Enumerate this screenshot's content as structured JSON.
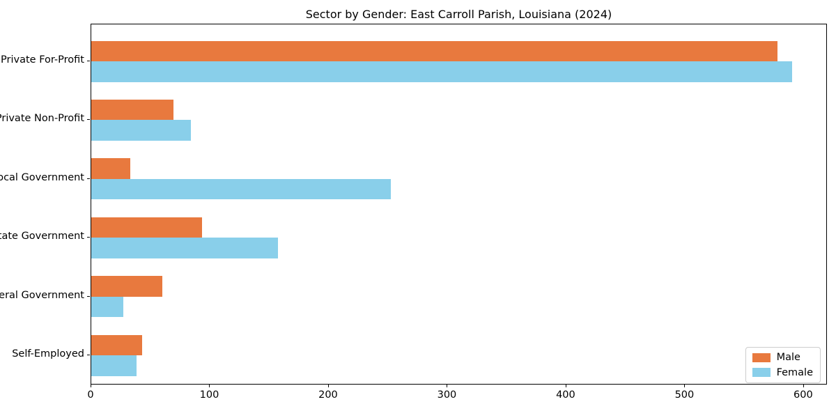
{
  "chart_data": {
    "type": "bar",
    "orientation": "horizontal",
    "title": "Sector by Gender: East Carroll Parish, Louisiana (2024)",
    "categories": [
      "Private For-Profit",
      "Private Non-Profit",
      "Local Government",
      "State Government",
      "Federal Government",
      "Self-Employed"
    ],
    "series": [
      {
        "name": "Male",
        "color": "#E8793E",
        "values": [
          578,
          69,
          33,
          93,
          60,
          43
        ]
      },
      {
        "name": "Female",
        "color": "#89CFEA",
        "values": [
          590,
          84,
          252,
          157,
          27,
          38
        ]
      }
    ],
    "xlabel": "",
    "ylabel": "",
    "xlim": [
      0,
      620
    ],
    "xticks": [
      0,
      100,
      200,
      300,
      400,
      500,
      600
    ],
    "grid": false,
    "legend_position": "lower right",
    "background_color": "#ffffff",
    "spine_color": "#000000"
  }
}
